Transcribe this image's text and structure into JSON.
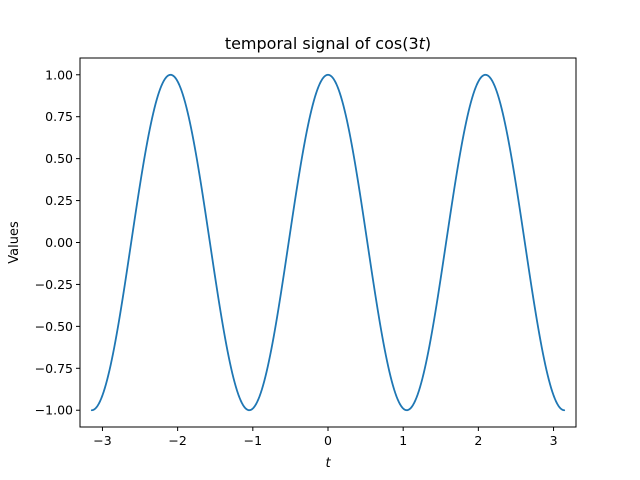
{
  "chart_data": {
    "type": "line",
    "title_prefix": "temporal signal of cos(3",
    "title_var": "t",
    "title_suffix": ")",
    "xlabel": "t",
    "ylabel": "Values",
    "xlim": [
      -3.2987,
      3.2987
    ],
    "ylim": [
      -1.1,
      1.1
    ],
    "xticks": [
      -3,
      -2,
      -1,
      0,
      1,
      2,
      3
    ],
    "xtick_labels": [
      "−3",
      "−2",
      "−1",
      "0",
      "1",
      "2",
      "3"
    ],
    "yticks": [
      -1.0,
      -0.75,
      -0.5,
      -0.25,
      0.0,
      0.25,
      0.5,
      0.75,
      1.0
    ],
    "ytick_labels": [
      "−1.00",
      "−0.75",
      "−0.50",
      "−0.25",
      "0.00",
      "0.25",
      "0.50",
      "0.75",
      "1.00"
    ],
    "grid": false,
    "series": [
      {
        "color": "#1f77b4",
        "x": [
          -3.1416,
          -3.0107,
          -2.8798,
          -2.7489,
          -2.618,
          -2.4871,
          -2.3562,
          -2.2253,
          -2.0944,
          -1.9635,
          -1.8326,
          -1.7017,
          -1.5708,
          -1.4399,
          -1.309,
          -1.1781,
          -1.0472,
          -0.9163,
          -0.7854,
          -0.6545,
          -0.5236,
          -0.3927,
          -0.2618,
          -0.1309,
          0.0,
          0.1309,
          0.2618,
          0.3927,
          0.5236,
          0.6545,
          0.7854,
          0.9163,
          1.0472,
          1.1781,
          1.309,
          1.4399,
          1.5708,
          1.7017,
          1.8326,
          1.9635,
          2.0944,
          2.2253,
          2.3562,
          2.4871,
          2.618,
          2.7489,
          2.8798,
          3.0107,
          3.1416
        ],
        "y": [
          -1.0,
          -0.924,
          -0.707,
          -0.383,
          0.0,
          0.383,
          0.707,
          0.924,
          1.0,
          0.924,
          0.707,
          0.383,
          0.0,
          -0.383,
          -0.707,
          -0.924,
          -1.0,
          -0.924,
          -0.707,
          -0.383,
          0.0,
          0.383,
          0.707,
          0.924,
          1.0,
          0.924,
          0.707,
          0.383,
          0.0,
          -0.383,
          -0.707,
          -0.924,
          -1.0,
          -0.924,
          -0.707,
          -0.383,
          0.0,
          0.383,
          0.707,
          0.924,
          1.0,
          0.924,
          0.707,
          0.383,
          0.0,
          -0.383,
          -0.707,
          -0.924,
          -1.0
        ]
      }
    ]
  }
}
